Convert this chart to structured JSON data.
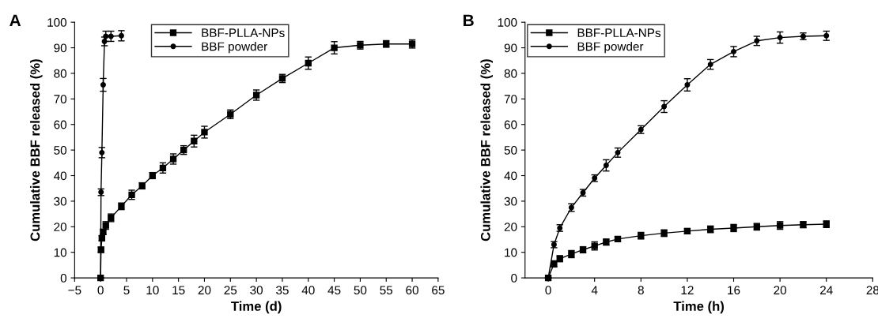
{
  "chart_data": [
    {
      "type": "line",
      "title": "A",
      "xlabel": "Time (d)",
      "ylabel": "Cumulative BBF released (%)",
      "xlim": [
        -5,
        65
      ],
      "ylim": [
        0,
        100
      ],
      "xticks": [
        {
          "value": -5,
          "label": "−5"
        },
        0,
        5,
        10,
        15,
        20,
        25,
        30,
        35,
        40,
        45,
        50,
        55,
        60,
        65
      ],
      "yticks": [
        0,
        10,
        20,
        30,
        40,
        50,
        60,
        70,
        80,
        90,
        100
      ],
      "grid": false,
      "legend": "top",
      "line_style": "solid",
      "series": [
        {
          "name": "BBF-PLLA-NPs",
          "color": "#000000",
          "marker": "square",
          "x": [
            0,
            0.083,
            0.25,
            0.5,
            1,
            2,
            4,
            6,
            8,
            10,
            12,
            14,
            16,
            18,
            20,
            25,
            30,
            35,
            40,
            45,
            50,
            55,
            60
          ],
          "values": [
            0,
            11,
            15.5,
            18,
            20.5,
            23.5,
            28,
            32.5,
            36,
            40,
            43,
            46.5,
            50,
            53.5,
            57,
            64,
            71.5,
            78,
            84,
            90,
            91,
            91.5,
            91.5
          ],
          "errors": [
            0,
            1,
            1,
            1,
            1.5,
            1.5,
            1.3,
            1.8,
            1.2,
            1.2,
            2,
            2,
            1.7,
            2.3,
            2.3,
            1.7,
            2,
            1.6,
            2.4,
            2.4,
            1.5,
            1.3,
            1.6
          ]
        },
        {
          "name": "BBF powder",
          "color": "#000000",
          "marker": "circle",
          "x": [
            0,
            0.083,
            0.25,
            0.5,
            0.75,
            1,
            2,
            4
          ],
          "values": [
            0,
            33.5,
            49,
            75.5,
            92.5,
            94.5,
            94.5,
            94.7
          ],
          "errors": [
            0,
            1.3,
            2,
            2.5,
            1.7,
            2,
            2,
            2
          ]
        }
      ]
    },
    {
      "type": "line",
      "title": "B",
      "xlabel": "Time (h)",
      "ylabel": "Cumulative BBF released (%)",
      "xlim": [
        -2,
        28
      ],
      "ylim": [
        0,
        100
      ],
      "xticks": [
        0,
        4,
        8,
        12,
        16,
        20,
        24,
        28
      ],
      "yticks": [
        0,
        10,
        20,
        30,
        40,
        50,
        60,
        70,
        80,
        90,
        100
      ],
      "grid": false,
      "legend": "top left",
      "line_style": "solid",
      "series": [
        {
          "name": "BBF-PLLA-NPs",
          "color": "#000000",
          "marker": "square",
          "x": [
            0,
            0.5,
            1,
            2,
            3,
            4,
            5,
            6,
            8,
            10,
            12,
            14,
            16,
            18,
            20,
            22,
            24
          ],
          "values": [
            0,
            5.5,
            7.5,
            9.3,
            11,
            12.5,
            14,
            15.2,
            16.5,
            17.5,
            18.3,
            19,
            19.5,
            20,
            20.5,
            20.8,
            21
          ],
          "errors": [
            0,
            1.2,
            1.2,
            1.4,
            1.2,
            1.6,
            1.2,
            0.8,
            1.3,
            1.3,
            1,
            1.3,
            1.4,
            1.3,
            1.5,
            1.2,
            1.3
          ]
        },
        {
          "name": "BBF powder",
          "color": "#000000",
          "marker": "circle",
          "x": [
            0,
            0.5,
            1,
            2,
            3,
            4,
            5,
            6,
            8,
            10,
            12,
            14,
            16,
            18,
            20,
            22,
            24
          ],
          "values": [
            0,
            13,
            19.5,
            27.5,
            33.3,
            39,
            44,
            49,
            58,
            67,
            75.5,
            83.5,
            88.5,
            92.7,
            94,
            94.5,
            94.7
          ],
          "errors": [
            0,
            1.2,
            1.3,
            1.5,
            1.3,
            1.3,
            2.2,
            1.8,
            1.5,
            2.3,
            2.4,
            1.9,
            2,
            1.8,
            2.2,
            1.3,
            1.8
          ]
        }
      ]
    }
  ]
}
